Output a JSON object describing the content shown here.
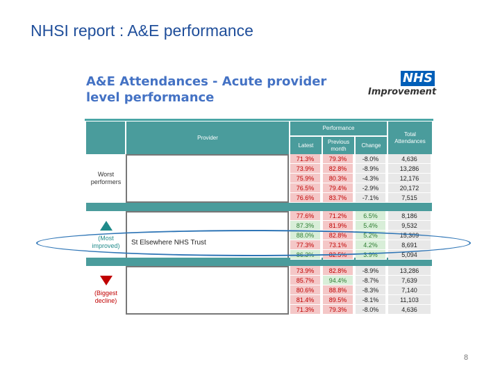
{
  "slide": {
    "title": "NHSI report : A&E performance",
    "page_number": "8"
  },
  "report": {
    "title": "A&E Attendances - Acute provider level performance"
  },
  "logo": {
    "badge": "NHS",
    "subtitle": "Improvement"
  },
  "table": {
    "headers": {
      "provider": "Provider",
      "performance": "Performance",
      "latest": "Latest",
      "previous_month": "Previous month",
      "change": "Change",
      "total_attendances": "Total Attendances"
    },
    "groups": [
      {
        "label": "Worst performers",
        "rows": [
          [
            "71.3%",
            "79.3%",
            "-8.0%",
            "4,636"
          ],
          [
            "73.9%",
            "82.8%",
            "-8.9%",
            "13,286"
          ],
          [
            "75.9%",
            "80.3%",
            "-4.3%",
            "12,176"
          ],
          [
            "76.5%",
            "79.4%",
            "-2.9%",
            "20,172"
          ],
          [
            "76.6%",
            "83.7%",
            "-7.1%",
            "7,515"
          ]
        ]
      },
      {
        "label_top": "(Most",
        "label_bottom": "improved)",
        "highlighted_provider": "St Elsewhere NHS Trust",
        "rows": [
          [
            "77.6%",
            "71.2%",
            "6.5%",
            "8,186"
          ],
          [
            "87.3%",
            "81.9%",
            "5.4%",
            "9,532"
          ],
          [
            "88.0%",
            "82.8%",
            "5.2%",
            "15,309"
          ],
          [
            "77.3%",
            "73.1%",
            "4.2%",
            "8,691"
          ],
          [
            "86.3%",
            "82.5%",
            "3.9%",
            "5,094"
          ]
        ]
      },
      {
        "label_top": "(Biggest",
        "label_bottom": "decline)",
        "rows": [
          [
            "73.9%",
            "82.8%",
            "-8.9%",
            "13,286"
          ],
          [
            "85.7%",
            "94.4%",
            "-8.7%",
            "7,639"
          ],
          [
            "80.6%",
            "88.8%",
            "-8.3%",
            "7,140"
          ],
          [
            "81.4%",
            "89.5%",
            "-8.1%",
            "11,103"
          ],
          [
            "71.3%",
            "79.3%",
            "-8.0%",
            "4,636"
          ]
        ]
      }
    ]
  },
  "colors": {
    "header": "#4a9c9c",
    "red_cell": "#f4c7c7",
    "red_text": "#c00000",
    "green_cell": "#d8eed8",
    "green_text": "#2e7d32",
    "neutral_cell": "#e8e8e8",
    "highlight_ellipse": "#2e75b6"
  }
}
